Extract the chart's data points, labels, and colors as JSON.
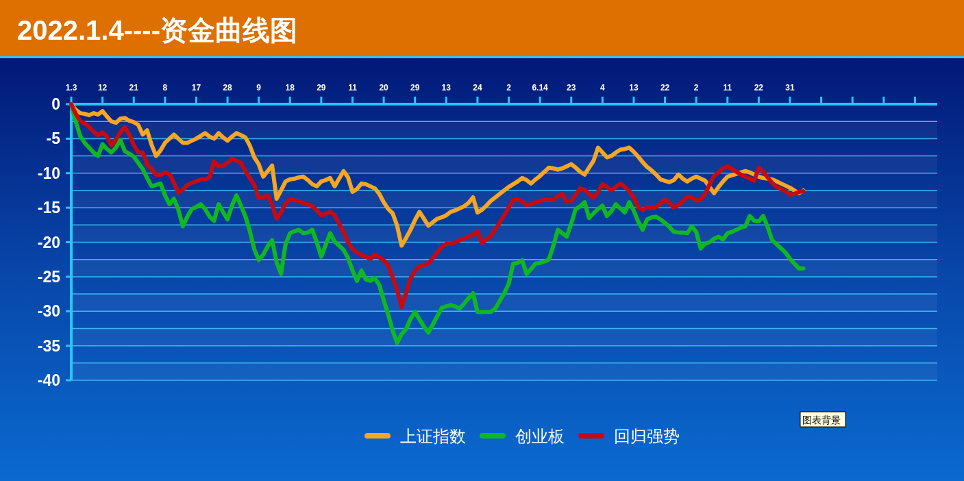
{
  "chart_data": {
    "type": "line",
    "title": "2022.1.4----资金曲线图",
    "categories": [
      "1.3",
      null,
      null,
      null,
      null,
      null,
      null,
      "12",
      null,
      null,
      null,
      null,
      null,
      null,
      "21",
      null,
      null,
      null,
      null,
      null,
      null,
      "8",
      null,
      null,
      null,
      null,
      null,
      null,
      "17",
      null,
      null,
      null,
      null,
      null,
      null,
      "28",
      null,
      null,
      null,
      null,
      null,
      null,
      "9",
      null,
      null,
      null,
      null,
      null,
      null,
      "18",
      null,
      null,
      null,
      null,
      null,
      null,
      "29",
      null,
      null,
      null,
      null,
      null,
      null,
      "11",
      null,
      null,
      null,
      null,
      null,
      null,
      "20",
      null,
      null,
      null,
      null,
      null,
      null,
      "29",
      null,
      null,
      null,
      null,
      null,
      null,
      "13",
      null,
      null,
      null,
      null,
      null,
      null,
      "24",
      null,
      null,
      null,
      null,
      null,
      null,
      "2",
      null,
      null,
      null,
      null,
      null,
      null,
      "6.14",
      null,
      null,
      null,
      null,
      null,
      null,
      "23",
      null,
      null,
      null,
      null,
      null,
      null,
      "4",
      null,
      null,
      null,
      null,
      null,
      null,
      "13",
      null,
      null,
      null,
      null,
      null,
      null,
      "22",
      null,
      null,
      null,
      null,
      null,
      null,
      "2",
      null,
      null,
      null,
      null,
      null,
      null,
      "11",
      null,
      null,
      null,
      null,
      null,
      null,
      "22",
      null,
      null,
      null,
      null,
      null,
      null,
      "31",
      null,
      null,
      null,
      null,
      null,
      null,
      null,
      null,
      null,
      null,
      null,
      null,
      null,
      null,
      null,
      null,
      null,
      null,
      null,
      null,
      null,
      null,
      null,
      null,
      null,
      null,
      null,
      null,
      null,
      null,
      null,
      null,
      null
    ],
    "ylim": [
      -40,
      0
    ],
    "yticks": [
      0,
      {
        "value": -2.5,
        "label": null
      },
      -5,
      {
        "value": -7.5,
        "label": null
      },
      -10,
      {
        "value": -12.5,
        "label": null
      },
      -15,
      {
        "value": -17.5,
        "label": null
      },
      -20,
      {
        "value": -22.5,
        "label": null
      },
      -25,
      {
        "value": -27.5,
        "label": null
      },
      -30,
      {
        "value": -32.5,
        "label": null
      },
      -35,
      {
        "value": -37.5,
        "label": null
      },
      -40
    ],
    "grid": "y",
    "legend": "bottom",
    "annotations": [
      "图表背景"
    ],
    "series": [
      {
        "name": "上证指数",
        "color": "#f5a623",
        "values": [
          0,
          -0.8,
          -1.3,
          -1.4,
          -1.6,
          -1.3,
          -1.5,
          -1.0,
          -1.8,
          -2.5,
          -2.7,
          -2.1,
          -2.0,
          -2.4,
          -2.6,
          -3.0,
          -4.4,
          -3.8,
          -5.9,
          -7.5,
          -6.7,
          -5.6,
          -5.0,
          -4.4,
          -5.0,
          -5.6,
          -5.6,
          -5.3,
          -5.0,
          -4.6,
          -4.2,
          -4.7,
          -5.0,
          -4.2,
          -4.8,
          -5.3,
          -4.7,
          -4.2,
          -4.5,
          -4.8,
          -6.0,
          -7.7,
          -8.7,
          -10.5,
          -9.7,
          -8.9,
          -13.7,
          -12.5,
          -11.2,
          -10.9,
          -10.8,
          -10.6,
          -10.5,
          -11.0,
          -11.6,
          -11.9,
          -11.2,
          -11.0,
          -10.7,
          -11.9,
          -10.8,
          -9.7,
          -10.6,
          -12.7,
          -12.3,
          -11.5,
          -11.6,
          -11.9,
          -12.2,
          -13.0,
          -14.2,
          -15.2,
          -15.8,
          -17.6,
          -20.5,
          -19.4,
          -18.2,
          -16.8,
          -15.6,
          -16.6,
          -17.6,
          -17.1,
          -16.6,
          -16.4,
          -16.1,
          -15.6,
          -15.4,
          -15.1,
          -14.8,
          -14.3,
          -13.5,
          -15.7,
          -15.3,
          -14.7,
          -14.0,
          -13.5,
          -13.0,
          -12.5,
          -12.0,
          -11.6,
          -11.2,
          -10.7,
          -11.0,
          -11.5,
          -10.9,
          -10.4,
          -9.8,
          -9.2,
          -9.3,
          -9.5,
          -9.3,
          -9.0,
          -8.7,
          -9.2,
          -9.8,
          -10.2,
          -9.2,
          -8.2,
          -6.3,
          -7.0,
          -7.7,
          -7.5,
          -7.0,
          -6.6,
          -6.5,
          -6.3,
          -6.9,
          -7.6,
          -8.4,
          -9.1,
          -9.6,
          -10.2,
          -10.9,
          -11.1,
          -11.3,
          -11.0,
          -10.2,
          -10.8,
          -11.2,
          -10.8,
          -10.5,
          -10.8,
          -11.1,
          -12.0,
          -12.9,
          -12.0,
          -11.2,
          -10.5,
          -10.3,
          -10.1,
          -9.9,
          -9.7,
          -9.9,
          -10.2,
          -10.5,
          -10.7,
          -10.8,
          -10.9,
          -11.2,
          -11.5,
          -11.8,
          -12.1,
          -12.5,
          -12.9,
          -12.5,
          null,
          null,
          null,
          null,
          null,
          null,
          null,
          null,
          null,
          null,
          null,
          null,
          null,
          null,
          null,
          null,
          null,
          null,
          null,
          null,
          null,
          null,
          null,
          null,
          null,
          null,
          null,
          null,
          null,
          null
        ]
      },
      {
        "name": "创业板",
        "color": "#10b820",
        "values": [
          0,
          -2.5,
          -4.6,
          -5.6,
          -6.3,
          -7.0,
          -7.5,
          -5.8,
          -6.5,
          -7.0,
          -6.3,
          -5.2,
          -6.8,
          -7.2,
          -7.6,
          -8.5,
          -9.4,
          -10.7,
          -11.9,
          -11.7,
          -11.5,
          -13.2,
          -14.5,
          -13.7,
          -15.3,
          -17.7,
          -16.3,
          -15.2,
          -14.9,
          -14.5,
          -15.2,
          -16.3,
          -16.9,
          -14.5,
          -15.6,
          -16.7,
          -14.7,
          -13.2,
          -14.7,
          -16.2,
          -18.4,
          -21.0,
          -22.6,
          -21.8,
          -20.6,
          -19.7,
          -22.9,
          -24.6,
          -20.3,
          -18.7,
          -18.4,
          -18.2,
          -18.7,
          -18.6,
          -18.2,
          -20.0,
          -22.1,
          -20.4,
          -18.7,
          -19.9,
          -20.5,
          -21.1,
          -22.3,
          -24.1,
          -25.6,
          -24.1,
          -25.4,
          -25.6,
          -25.2,
          -26.2,
          -28.4,
          -30.5,
          -32.8,
          -34.6,
          -33.3,
          -32.6,
          -31.1,
          -30.1,
          -31.2,
          -32.2,
          -33.1,
          -31.9,
          -30.7,
          -29.5,
          -29.3,
          -29.1,
          -29.3,
          -29.6,
          -28.9,
          -28.1,
          -27.4,
          -30.1,
          -30.1,
          -30.1,
          -30.1,
          -29.6,
          -28.5,
          -27.4,
          -26.0,
          -23.1,
          -23.0,
          -22.6,
          -24.6,
          -23.9,
          -23.1,
          -23.0,
          -22.8,
          -22.5,
          -20.5,
          -18.2,
          -18.7,
          -19.2,
          -17.3,
          -15.2,
          -14.8,
          -14.2,
          -16.5,
          -15.8,
          -15.2,
          -14.7,
          -16.2,
          -15.5,
          -14.5,
          -15.1,
          -15.7,
          -14.2,
          -15.4,
          -17.0,
          -18.2,
          -16.7,
          -16.4,
          -16.3,
          -16.7,
          -17.2,
          -17.8,
          -18.5,
          -18.6,
          -18.6,
          -18.7,
          -17.7,
          -18.5,
          -20.9,
          -20.2,
          -20.0,
          -19.5,
          -19.2,
          -19.6,
          -18.7,
          -18.5,
          -18.2,
          -17.9,
          -17.7,
          -16.2,
          -16.9,
          -17.0,
          -16.2,
          -17.8,
          -19.7,
          -20.3,
          -20.9,
          -21.5,
          -22.4,
          -23.1,
          -23.8,
          -23.8,
          null,
          null,
          null,
          null,
          null,
          null,
          null,
          null,
          null,
          null,
          null,
          null,
          null,
          null,
          null,
          null,
          null,
          null,
          null,
          null,
          null,
          null,
          null,
          null,
          null,
          null,
          null,
          null,
          null,
          null
        ]
      },
      {
        "name": "回归强势",
        "color": "#c80a10",
        "values": [
          0,
          -1.4,
          -2.4,
          -2.8,
          -3.3,
          -4.0,
          -4.5,
          -4.1,
          -4.7,
          -6.0,
          -5.1,
          -4.1,
          -3.3,
          -4.4,
          -5.9,
          -7.0,
          -7.0,
          -8.7,
          -9.4,
          -10.2,
          -10.3,
          -9.9,
          -10.1,
          -11.4,
          -12.8,
          -12.4,
          -11.7,
          -11.4,
          -11.2,
          -10.9,
          -10.9,
          -10.6,
          -8.3,
          -9.0,
          -8.9,
          -8.5,
          -7.9,
          -8.2,
          -8.5,
          -9.7,
          -10.7,
          -11.7,
          -13.6,
          -13.5,
          -13.2,
          -14.6,
          -16.6,
          -15.7,
          -14.4,
          -13.8,
          -13.9,
          -14.1,
          -14.3,
          -14.5,
          -14.8,
          -15.4,
          -16.1,
          -15.9,
          -15.6,
          -16.1,
          -17.3,
          -18.5,
          -20.0,
          -21.0,
          -21.5,
          -21.9,
          -22.1,
          -22.4,
          -21.8,
          -22.2,
          -22.6,
          -23.4,
          -25.1,
          -26.9,
          -29.4,
          -27.4,
          -25.2,
          -24.2,
          -23.5,
          -23.3,
          -23.1,
          -22.3,
          -21.5,
          -20.7,
          -20.2,
          -20.2,
          -20.0,
          -19.7,
          -19.5,
          -19.2,
          -18.9,
          -18.4,
          -20.1,
          -19.6,
          -19.1,
          -18.1,
          -17.1,
          -16.1,
          -15.0,
          -13.9,
          -13.8,
          -14.1,
          -14.6,
          -14.5,
          -14.2,
          -14.0,
          -13.9,
          -13.9,
          -13.9,
          -13.3,
          -13.0,
          -14.2,
          -14.0,
          -13.1,
          -12.2,
          -12.4,
          -13.0,
          -13.6,
          -12.7,
          -11.6,
          -12.0,
          -12.5,
          -12.0,
          -11.5,
          -12.0,
          -12.6,
          -13.5,
          -14.9,
          -15.4,
          -14.9,
          -15.1,
          -14.9,
          -14.4,
          -13.8,
          -14.3,
          -15.0,
          -14.6,
          -14.1,
          -13.4,
          -13.5,
          -14.0,
          -13.8,
          -13.0,
          -11.6,
          -10.4,
          -9.9,
          -9.3,
          -9.0,
          -9.4,
          -9.8,
          -10.2,
          -10.5,
          -10.8,
          -11.1,
          -9.2,
          -9.8,
          -10.6,
          -11.4,
          -12.0,
          -12.3,
          -12.6,
          -13.1,
          -13.0,
          -12.7,
          -12.6,
          null,
          null,
          null,
          null,
          null,
          null,
          null,
          null,
          null,
          null,
          null,
          null,
          null,
          null,
          null,
          null,
          null,
          null,
          null,
          null,
          null,
          null,
          null,
          null,
          null,
          null,
          null,
          null,
          null,
          null
        ]
      }
    ]
  }
}
